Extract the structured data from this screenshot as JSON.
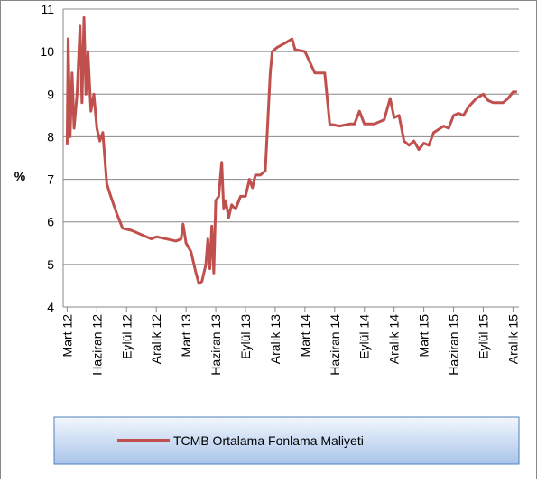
{
  "chart_data": {
    "type": "line",
    "ylabel": "%",
    "xlim": [
      -0.4,
      45.6
    ],
    "ylim": [
      4,
      11
    ],
    "yticks": [
      4,
      5,
      6,
      7,
      8,
      9,
      10,
      11
    ],
    "xticks": [
      {
        "value": 0,
        "label": "Mart 12"
      },
      {
        "value": 3,
        "label": "Haziran 12"
      },
      {
        "value": 6,
        "label": "Eylül 12"
      },
      {
        "value": 9,
        "label": "Aralık 12"
      },
      {
        "value": 12,
        "label": "Mart 13"
      },
      {
        "value": 15,
        "label": "Haziran 13"
      },
      {
        "value": 18,
        "label": "Eylül 13"
      },
      {
        "value": 21,
        "label": "Aralık 13"
      },
      {
        "value": 24,
        "label": "Mart 14"
      },
      {
        "value": 27,
        "label": "Haziran 14"
      },
      {
        "value": 30,
        "label": "Eylül 14"
      },
      {
        "value": 33,
        "label": "Aralık 14"
      },
      {
        "value": 36,
        "label": "Mart 15"
      },
      {
        "value": 39,
        "label": "Haziran 15"
      },
      {
        "value": 42,
        "label": "Eylül 15"
      },
      {
        "value": 45,
        "label": "Aralık 15"
      }
    ],
    "grid": true,
    "legend": "bottom",
    "series": [
      {
        "name": "TCMB Ortalama Fonlama Maliyeti",
        "color": "#c0504d",
        "x": [
          0,
          0.1,
          0.3,
          0.5,
          0.7,
          1.0,
          1.3,
          1.5,
          1.7,
          1.9,
          2.1,
          2.4,
          2.7,
          3.0,
          3.3,
          3.6,
          4.0,
          4.4,
          5.0,
          5.6,
          6.5,
          7.5,
          8.5,
          9.0,
          10,
          11,
          11.5,
          11.7,
          12,
          12.5,
          13,
          13.3,
          13.6,
          14.0,
          14.2,
          14.4,
          14.6,
          14.8,
          15.0,
          15.3,
          15.6,
          15.8,
          16,
          16.3,
          16.6,
          17,
          17.5,
          18,
          18.4,
          18.7,
          19,
          19.5,
          20,
          20.5,
          20.7,
          21.2,
          22,
          22.7,
          23,
          24,
          25,
          26,
          26.5,
          27.5,
          28.5,
          29,
          29.5,
          30,
          31,
          32,
          32.6,
          33,
          33.5,
          34,
          34.5,
          35,
          35.5,
          36,
          36.5,
          37,
          38,
          38.5,
          39,
          39.5,
          40,
          40.5,
          41.3,
          42,
          42.5,
          43,
          44,
          44.5,
          45,
          45.4
        ],
        "values": [
          7.8,
          10.3,
          8.0,
          9.5,
          8.2,
          9.0,
          10.6,
          8.8,
          10.8,
          9.0,
          10.0,
          8.6,
          9.0,
          8.2,
          7.9,
          8.1,
          6.9,
          6.6,
          6.2,
          5.85,
          5.8,
          5.7,
          5.6,
          5.65,
          5.6,
          5.55,
          5.6,
          5.95,
          5.5,
          5.3,
          4.8,
          4.55,
          4.6,
          5.0,
          5.6,
          4.9,
          5.9,
          4.8,
          6.5,
          6.6,
          7.4,
          6.3,
          6.5,
          6.1,
          6.4,
          6.3,
          6.6,
          6.6,
          7.0,
          6.8,
          7.1,
          7.1,
          7.2,
          9.5,
          10.0,
          10.1,
          10.2,
          10.3,
          10.05,
          10.0,
          9.5,
          9.5,
          8.3,
          8.25,
          8.3,
          8.3,
          8.6,
          8.3,
          8.3,
          8.4,
          8.9,
          8.45,
          8.5,
          7.9,
          7.8,
          7.9,
          7.7,
          7.85,
          7.8,
          8.1,
          8.25,
          8.2,
          8.5,
          8.55,
          8.5,
          8.7,
          8.9,
          9.0,
          8.85,
          8.8,
          8.8,
          8.9,
          9.05,
          9.05
        ]
      }
    ]
  }
}
